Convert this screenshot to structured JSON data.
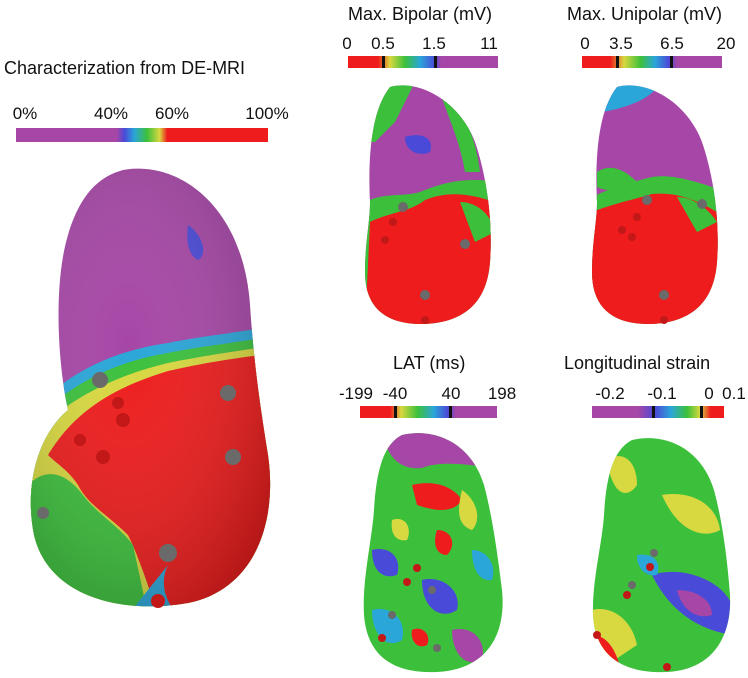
{
  "panels": {
    "demri": {
      "title": "Characterization from DE-MRI",
      "ticks": [
        "0%",
        "40%",
        "60%",
        "100%"
      ]
    },
    "bipolar": {
      "title": "Max. Bipolar (mV)",
      "ticks": [
        "0",
        "0.5",
        "1.5",
        "11"
      ]
    },
    "unipolar": {
      "title": "Max. Unipolar (mV)",
      "ticks": [
        "0",
        "3.5",
        "6.5",
        "20"
      ]
    },
    "lat": {
      "title": "LAT (ms)",
      "ticks": [
        "-199",
        "-40",
        "40",
        "198"
      ]
    },
    "strain": {
      "title": "Longitudinal strain",
      "ticks": [
        "-0.2",
        "-0.1",
        "0",
        "0.1"
      ]
    }
  },
  "colors": {
    "purple": "#a646a6",
    "red": "#ee1c1c",
    "green": "#3cc03c",
    "yellow": "#d8d840",
    "blue": "#4a4ad8",
    "cyan": "#2aa6d8",
    "gray_point": "#6a6a6a",
    "red_point": "#c21818"
  }
}
